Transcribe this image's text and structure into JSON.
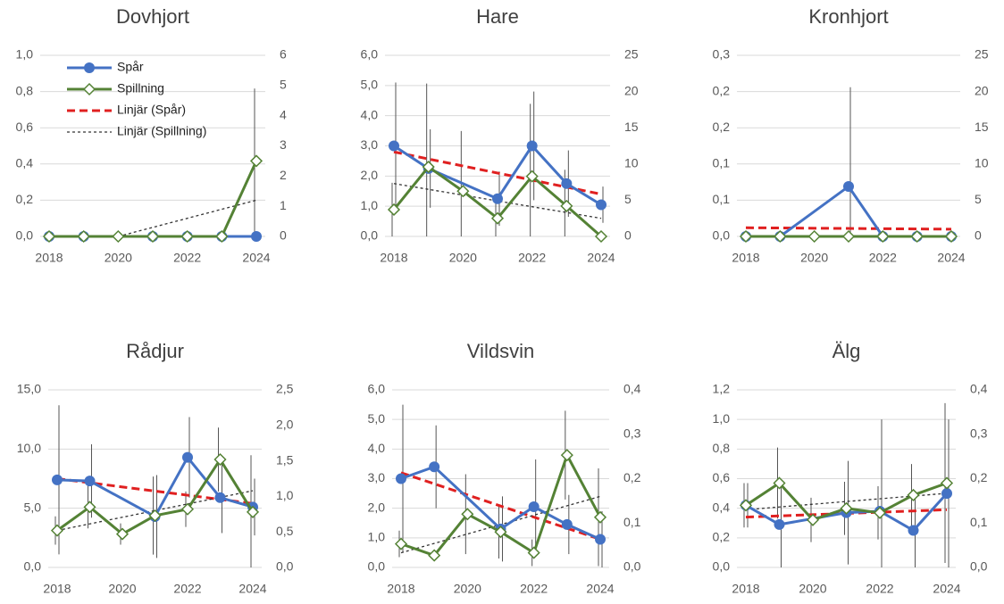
{
  "chart_data": [
    {
      "type": "line",
      "title": "Dovhjort",
      "legend": "top-left",
      "xlim": [
        2018,
        2024
      ],
      "xticks": [
        2018,
        2020,
        2022,
        2024
      ],
      "ylim": [
        0,
        1
      ],
      "yticks": [
        {
          "value": 0,
          "label": "0,0"
        },
        {
          "value": 0.2,
          "label": "0,2"
        },
        {
          "value": 0.4,
          "label": "0,4"
        },
        {
          "value": 0.6,
          "label": "0,6"
        },
        {
          "value": 0.8,
          "label": "0,8"
        },
        {
          "value": 1,
          "label": "1,0"
        }
      ],
      "y2lim": [
        0,
        6
      ],
      "y2ticks": [
        0,
        1,
        2,
        3,
        4,
        5,
        6
      ],
      "grid": true,
      "series": [
        {
          "name": "Spår",
          "color": "#4472c4",
          "marker": "circle",
          "x": [
            2018,
            2019,
            2021,
            2022,
            2023,
            2024
          ],
          "values": [
            0,
            0,
            0,
            0,
            0,
            0
          ]
        },
        {
          "name": "Spillning",
          "color": "#548235",
          "marker": "diamond",
          "axis": "y2",
          "x": [
            2018,
            2019,
            2020,
            2021,
            2022,
            2023,
            2024
          ],
          "values": [
            0,
            0,
            0,
            0,
            0,
            0,
            2.5
          ],
          "errors": [
            null,
            null,
            null,
            null,
            null,
            null,
            2.4
          ]
        },
        {
          "name": "Linjär (Spår)",
          "color": "#e02020",
          "style": "dashed",
          "x": [
            2018,
            2024
          ],
          "values": [
            0,
            0
          ]
        },
        {
          "name": "Linjär (Spillning)",
          "color": "#333333",
          "style": "dotted",
          "axis": "y2",
          "x": [
            2020,
            2024
          ],
          "values": [
            0,
            1.2
          ]
        }
      ]
    },
    {
      "type": "line",
      "title": "Hare",
      "xlim": [
        2018,
        2024
      ],
      "xticks": [
        2018,
        2020,
        2022,
        2024
      ],
      "ylim": [
        0,
        6
      ],
      "yticks": [
        {
          "value": 0,
          "label": "0,0"
        },
        {
          "value": 1,
          "label": "1,0"
        },
        {
          "value": 2,
          "label": "2,0"
        },
        {
          "value": 3,
          "label": "3,0"
        },
        {
          "value": 4,
          "label": "4,0"
        },
        {
          "value": 5,
          "label": "5,0"
        },
        {
          "value": 6,
          "label": "6,0"
        }
      ],
      "y2lim": [
        0,
        25
      ],
      "y2ticks": [
        0,
        5,
        10,
        15,
        20,
        25
      ],
      "grid": true,
      "series": [
        {
          "color": "#4472c4",
          "marker": "circle",
          "x": [
            2018,
            2019,
            2021,
            2022,
            2023,
            2024
          ],
          "values": [
            3.0,
            2.25,
            1.25,
            3.0,
            1.75,
            1.05
          ],
          "errors": [
            2.1,
            1.3,
            0.9,
            1.8,
            1.1,
            0.6
          ]
        },
        {
          "color": "#548235",
          "marker": "diamond",
          "axis": "y2",
          "x": [
            2018,
            2019,
            2020,
            2021,
            2022,
            2023,
            2024
          ],
          "values": [
            3.7,
            9.6,
            6.25,
            2.5,
            8.3,
            4.2,
            0
          ],
          "errors": [
            3.7,
            11.5,
            8.3,
            2.5,
            10,
            5,
            null
          ]
        },
        {
          "color": "#e02020",
          "style": "dashed",
          "x": [
            2018,
            2024
          ],
          "values": [
            2.8,
            1.4
          ]
        },
        {
          "color": "#333333",
          "style": "dotted",
          "axis": "y2",
          "x": [
            2018,
            2024
          ],
          "values": [
            7.3,
            2.5
          ]
        }
      ]
    },
    {
      "type": "line",
      "title": "Kronhjort",
      "xlim": [
        2018,
        2024
      ],
      "xticks": [
        2018,
        2020,
        2022,
        2024
      ],
      "ylim": [
        0,
        0.25
      ],
      "yticks": [
        {
          "value": 0,
          "label": "0,0"
        },
        {
          "value": 0.05,
          "label": "0,1"
        },
        {
          "value": 0.1,
          "label": "0,1"
        },
        {
          "value": 0.15,
          "label": "0,2"
        },
        {
          "value": 0.2,
          "label": "0,2"
        },
        {
          "value": 0.25,
          "label": "0,3"
        }
      ],
      "y2lim": [
        0,
        25
      ],
      "y2ticks": [
        0,
        5,
        10,
        15,
        20,
        25
      ],
      "grid": true,
      "series": [
        {
          "color": "#4472c4",
          "marker": "circle",
          "x": [
            2018,
            2019,
            2021,
            2022,
            2023,
            2024
          ],
          "values": [
            0,
            0,
            0.069,
            0,
            0,
            0
          ],
          "errors": [
            null,
            null,
            0.137,
            null,
            null,
            null
          ]
        },
        {
          "color": "#548235",
          "marker": "diamond",
          "axis": "y2",
          "x": [
            2018,
            2019,
            2020,
            2021,
            2022,
            2023,
            2024
          ],
          "values": [
            0,
            0,
            0,
            0,
            0,
            0,
            0
          ]
        },
        {
          "color": "#e02020",
          "style": "dashed",
          "x": [
            2018,
            2024
          ],
          "values": [
            0.012,
            0.01
          ]
        }
      ]
    },
    {
      "type": "line",
      "title": "Rådjur",
      "xlim": [
        2018,
        2024
      ],
      "xticks": [
        2018,
        2020,
        2022,
        2024
      ],
      "ylim": [
        0,
        15
      ],
      "yticks": [
        {
          "value": 0,
          "label": "0,0"
        },
        {
          "value": 5,
          "label": "5,0"
        },
        {
          "value": 10,
          "label": "10,0"
        },
        {
          "value": 15,
          "label": "15,0"
        }
      ],
      "y2lim": [
        0,
        2.5
      ],
      "y2ticks": [
        {
          "value": 0,
          "label": "0,0"
        },
        {
          "value": 0.5,
          "label": "0,5"
        },
        {
          "value": 1,
          "label": "1,0"
        },
        {
          "value": 1.5,
          "label": "1,5"
        },
        {
          "value": 2,
          "label": "2,0"
        },
        {
          "value": 2.5,
          "label": "2,5"
        }
      ],
      "grid": true,
      "series": [
        {
          "color": "#4472c4",
          "marker": "circle",
          "x": [
            2018,
            2019,
            2021,
            2022,
            2023,
            2024
          ],
          "values": [
            7.4,
            7.3,
            4.3,
            9.3,
            5.9,
            5.1
          ],
          "errors": [
            6.3,
            3.1,
            3.5,
            3.4,
            3,
            2.4
          ]
        },
        {
          "color": "#548235",
          "marker": "diamond",
          "axis": "y2",
          "x": [
            2018,
            2019,
            2020,
            2021,
            2022,
            2023,
            2024
          ],
          "values": [
            0.52,
            0.85,
            0.47,
            0.73,
            0.82,
            1.52,
            0.78
          ],
          "errors": [
            0.2,
            0.3,
            0.15,
            0.55,
            0.25,
            0.45,
            0.8
          ]
        },
        {
          "color": "#e02020",
          "style": "dashed",
          "x": [
            2018,
            2024
          ],
          "values": [
            7.5,
            5.4
          ]
        },
        {
          "color": "#333333",
          "style": "dotted",
          "axis": "y2",
          "x": [
            2018,
            2024
          ],
          "values": [
            0.52,
            1.08
          ]
        }
      ]
    },
    {
      "type": "line",
      "title": "Vildsvin",
      "xlim": [
        2018,
        2024
      ],
      "xticks": [
        2018,
        2020,
        2022,
        2024
      ],
      "ylim": [
        0,
        6
      ],
      "yticks": [
        {
          "value": 0,
          "label": "0,0"
        },
        {
          "value": 1,
          "label": "1,0"
        },
        {
          "value": 2,
          "label": "2,0"
        },
        {
          "value": 3,
          "label": "3,0"
        },
        {
          "value": 4,
          "label": "4,0"
        },
        {
          "value": 5,
          "label": "5,0"
        },
        {
          "value": 6,
          "label": "6,0"
        }
      ],
      "y2lim": [
        0,
        0.4
      ],
      "y2ticks": [
        {
          "value": 0,
          "label": "0,0"
        },
        {
          "value": 0.1,
          "label": "0,1"
        },
        {
          "value": 0.2,
          "label": "0,2"
        },
        {
          "value": 0.3,
          "label": "0,3"
        },
        {
          "value": 0.4,
          "label": "0,4"
        }
      ],
      "grid": true,
      "series": [
        {
          "color": "#4472c4",
          "marker": "circle",
          "x": [
            2018,
            2019,
            2021,
            2022,
            2023,
            2024
          ],
          "values": [
            3.0,
            3.4,
            1.3,
            2.05,
            1.45,
            0.95
          ],
          "errors": [
            2.5,
            1.4,
            1.1,
            1.6,
            1.0,
            0.95
          ]
        },
        {
          "color": "#548235",
          "marker": "diamond",
          "axis": "y2",
          "x": [
            2018,
            2019,
            2020,
            2021,
            2022,
            2023,
            2024
          ],
          "values": [
            0.053,
            0.027,
            0.12,
            0.08,
            0.033,
            0.253,
            0.113
          ],
          "errors": [
            0.03,
            null,
            0.09,
            0.06,
            0.03,
            0.1,
            0.11
          ]
        },
        {
          "color": "#e02020",
          "style": "dashed",
          "x": [
            2018,
            2024
          ],
          "values": [
            3.2,
            0.95
          ]
        },
        {
          "color": "#333333",
          "style": "dotted",
          "axis": "y2",
          "x": [
            2018,
            2024
          ],
          "values": [
            0.033,
            0.16
          ]
        }
      ]
    },
    {
      "type": "line",
      "title": "Älg",
      "xlim": [
        2018,
        2024
      ],
      "xticks": [
        2018,
        2020,
        2022,
        2024
      ],
      "ylim": [
        0,
        1.2
      ],
      "yticks": [
        {
          "value": 0,
          "label": "0,0"
        },
        {
          "value": 0.2,
          "label": "0,2"
        },
        {
          "value": 0.4,
          "label": "0,4"
        },
        {
          "value": 0.6,
          "label": "0,6"
        },
        {
          "value": 0.8,
          "label": "0,8"
        },
        {
          "value": 1,
          "label": "1,0"
        },
        {
          "value": 1.2,
          "label": "1,2"
        }
      ],
      "y2lim": [
        0,
        0.4
      ],
      "y2ticks": [
        {
          "value": 0,
          "label": "0,0"
        },
        {
          "value": 0.1,
          "label": "0,1"
        },
        {
          "value": 0.2,
          "label": "0,2"
        },
        {
          "value": 0.3,
          "label": "0,3"
        },
        {
          "value": 0.4,
          "label": "0,4"
        }
      ],
      "grid": true,
      "series": [
        {
          "color": "#4472c4",
          "marker": "circle",
          "x": [
            2018,
            2019,
            2021,
            2022,
            2023,
            2024
          ],
          "values": [
            0.42,
            0.29,
            0.37,
            0.38,
            0.25,
            0.5
          ],
          "errors": [
            0.15,
            0.3,
            0.35,
            0.62,
            0.25,
            0.5
          ]
        },
        {
          "color": "#548235",
          "marker": "diamond",
          "axis": "y2",
          "x": [
            2018,
            2019,
            2020,
            2021,
            2022,
            2023,
            2024
          ],
          "values": [
            0.14,
            0.19,
            0.107,
            0.133,
            0.123,
            0.163,
            0.19
          ],
          "errors": [
            0.05,
            0.08,
            0.05,
            0.06,
            0.06,
            0.07,
            0.18
          ]
        },
        {
          "color": "#e02020",
          "style": "dashed",
          "x": [
            2018,
            2024
          ],
          "values": [
            0.34,
            0.39
          ]
        },
        {
          "color": "#333333",
          "style": "dotted",
          "axis": "y2",
          "x": [
            2018,
            2024
          ],
          "values": [
            0.13,
            0.167
          ]
        }
      ]
    }
  ]
}
